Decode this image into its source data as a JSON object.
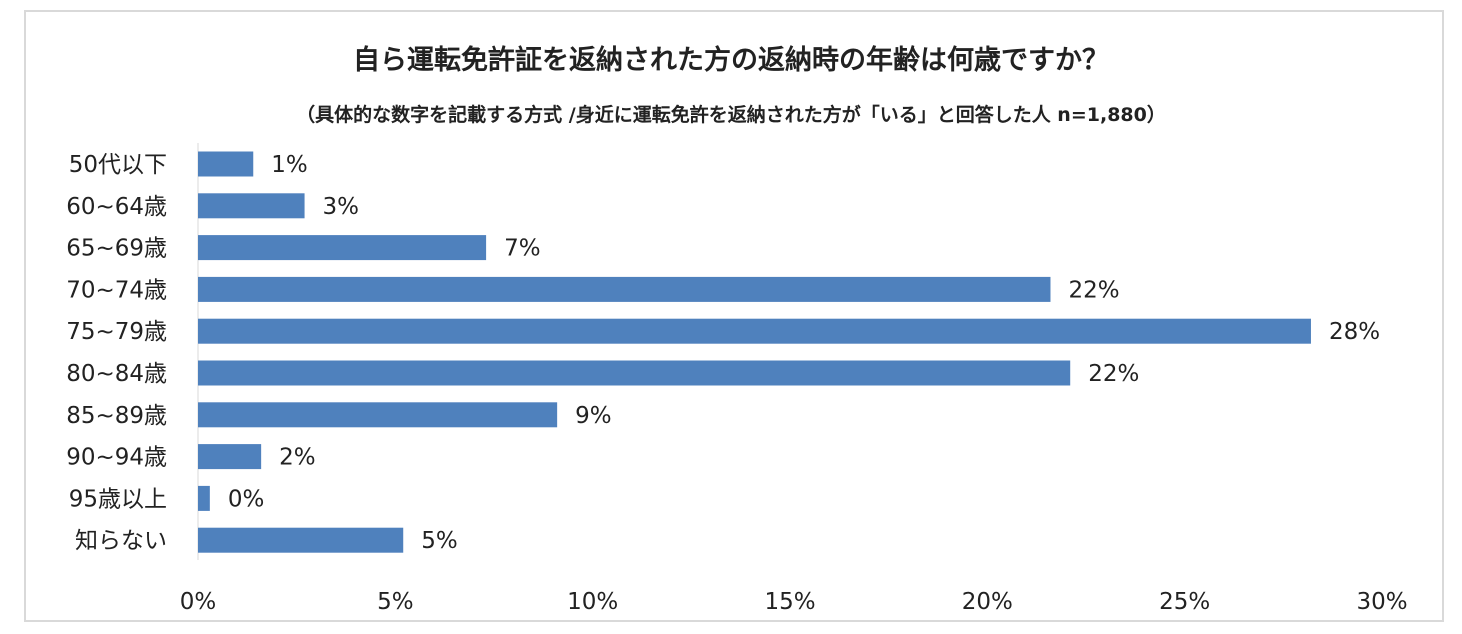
{
  "chart_data": {
    "type": "bar",
    "orientation": "horizontal",
    "title": "自ら運転免許証を返納された方の返納時の年齢は何歳ですか？",
    "subtitle": "（具体的な数字を記載する方式 /身近に運転免許を返納された方が「いる」と回答した人 n=1,880）",
    "categories": [
      "50代以下",
      "60~64歳",
      "65~69歳",
      "70~74歳",
      "75~79歳",
      "80~84歳",
      "85~89歳",
      "90~94歳",
      "95歳以上",
      "知らない"
    ],
    "values": [
      1.4,
      2.7,
      7.3,
      21.6,
      28.2,
      22.1,
      9.1,
      1.6,
      0.3,
      5.2
    ],
    "value_labels": [
      "1%",
      "3%",
      "7%",
      "22%",
      "28%",
      "22%",
      "9%",
      "2%",
      "0%",
      "5%"
    ],
    "xlim": [
      0,
      30
    ],
    "xticks": [
      0,
      5,
      10,
      15,
      20,
      25,
      30
    ],
    "xtick_labels": [
      "0%",
      "5%",
      "10%",
      "15%",
      "20%",
      "25%",
      "30%"
    ],
    "bar_color": "#4f81bd",
    "grid": false,
    "legend": "none"
  }
}
